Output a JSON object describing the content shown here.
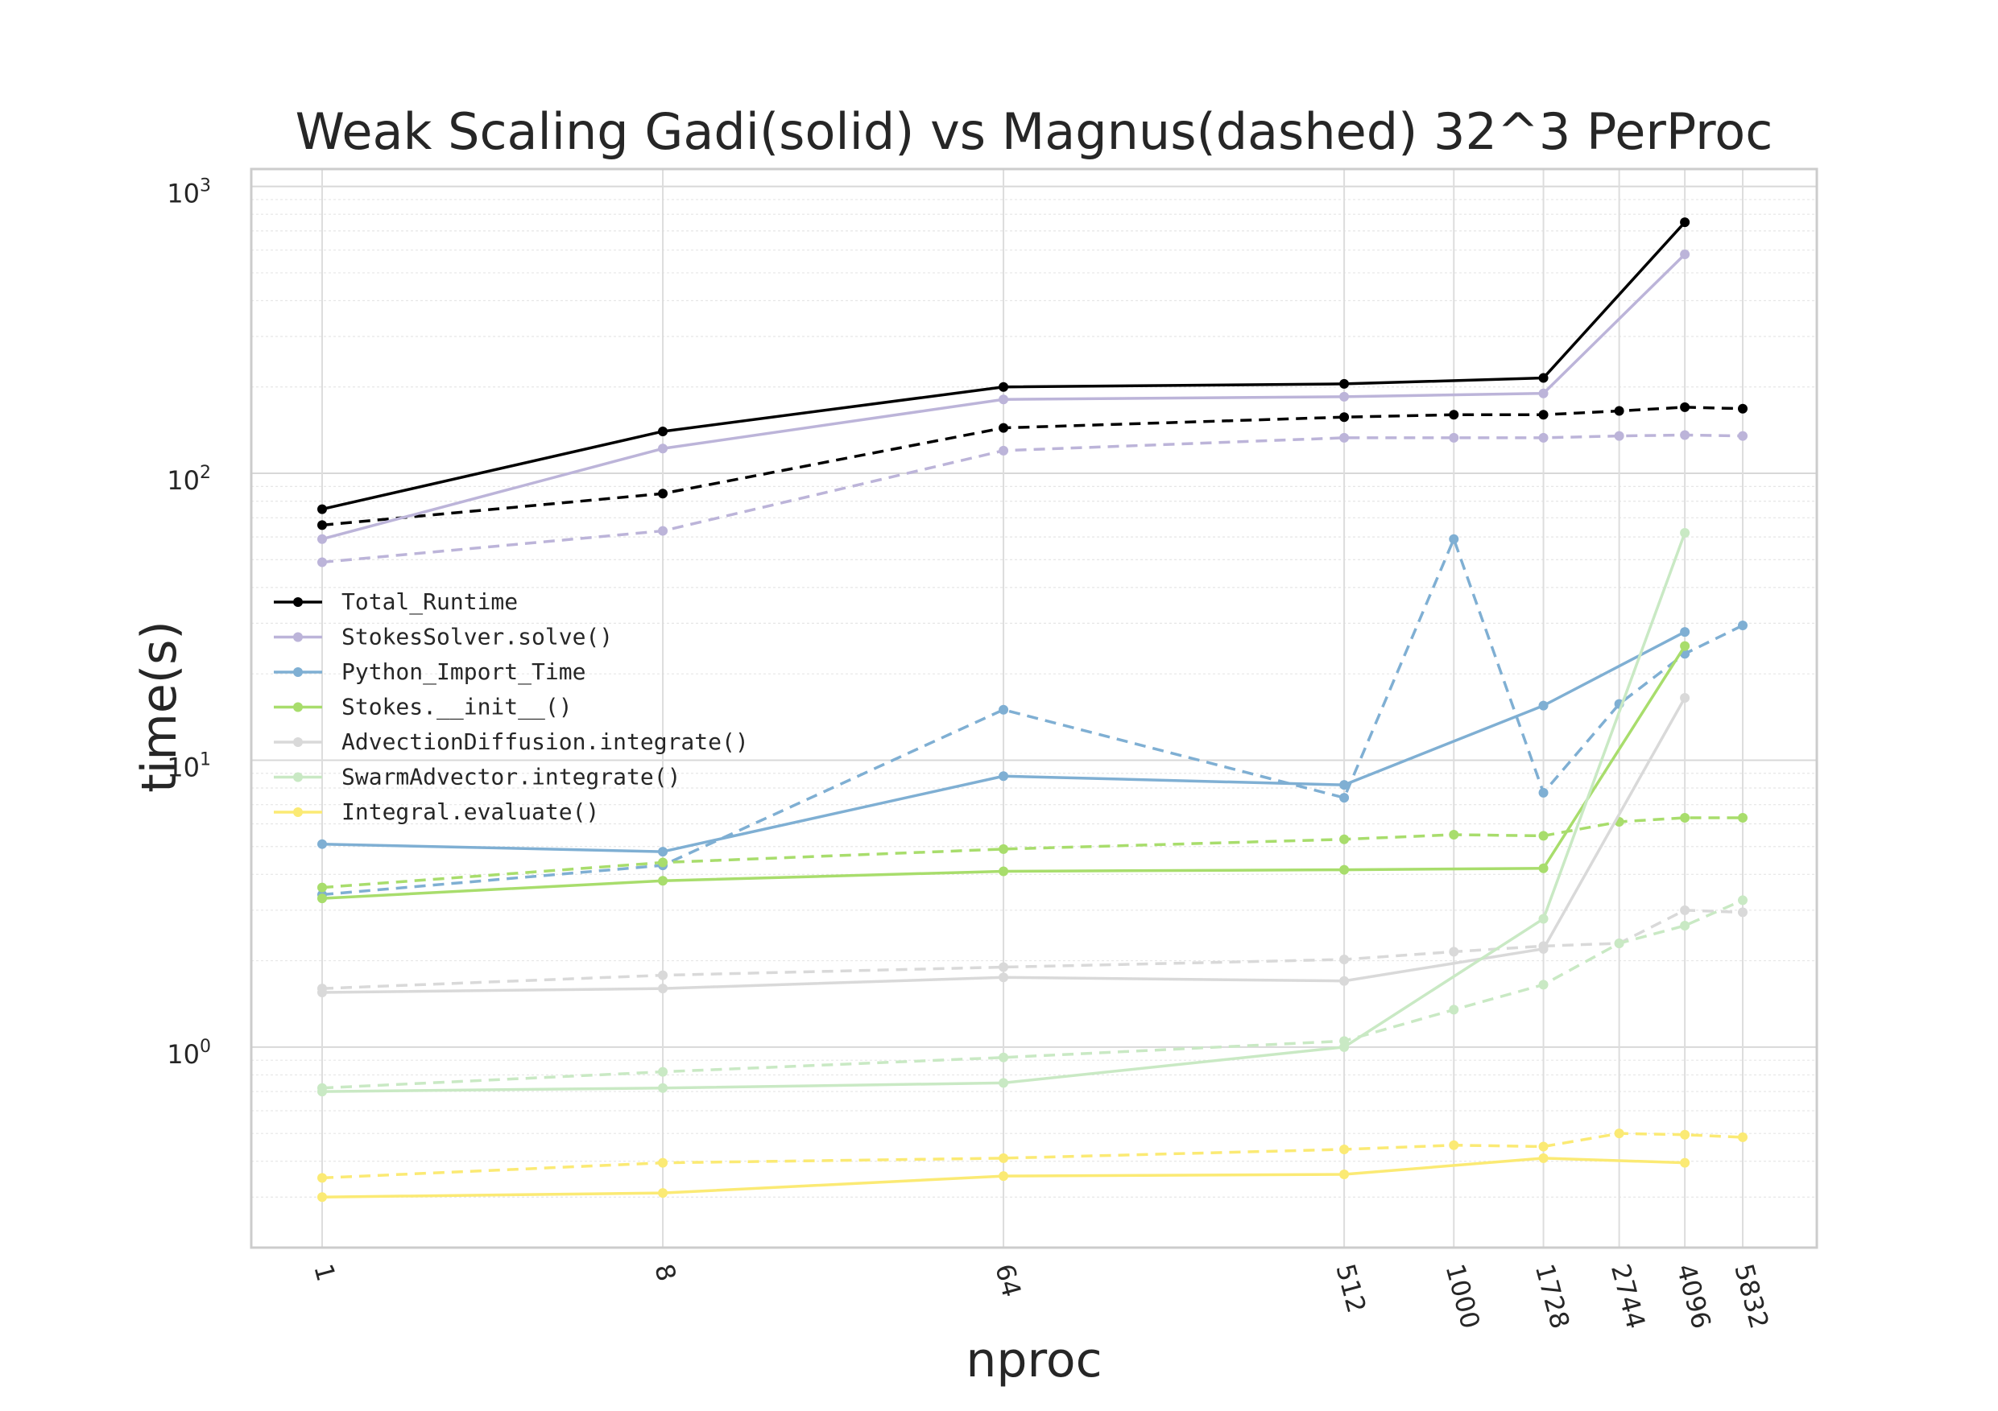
{
  "chart_data": {
    "type": "line",
    "title": "Weak Scaling Gadi(solid) vs Magnus(dashed) 32^3 PerProc",
    "xlabel": "nproc",
    "ylabel": "time(s)",
    "xscale": "log",
    "yscale": "log",
    "ylim": [
      0.2,
      1150
    ],
    "yticks": [
      {
        "value": 1,
        "base": "10",
        "exp": "0"
      },
      {
        "value": 10,
        "base": "10",
        "exp": "1"
      },
      {
        "value": 100,
        "base": "10",
        "exp": "2"
      },
      {
        "value": 1000,
        "base": "10",
        "exp": "3"
      }
    ],
    "xticks": [
      "1",
      "8",
      "64",
      "512",
      "1000",
      "1728",
      "2744",
      "4096",
      "5832"
    ],
    "grid": true,
    "legend_position": "center-left",
    "series": [
      {
        "name": "Total_Runtime",
        "color": "#000000",
        "style": "solid",
        "x": [
          1,
          8,
          64,
          512,
          1728,
          4096
        ],
        "y": [
          75,
          140,
          200,
          205,
          215,
          750
        ]
      },
      {
        "name": "StokesSolver.solve()",
        "color": "#bcb4d9",
        "style": "solid",
        "x": [
          1,
          8,
          64,
          512,
          1728,
          4096
        ],
        "y": [
          59,
          122,
          181,
          185,
          190,
          580
        ]
      },
      {
        "name": "Python_Import_Time",
        "color": "#7fafd3",
        "style": "solid",
        "x": [
          1,
          8,
          64,
          512,
          1728,
          4096
        ],
        "y": [
          5.1,
          4.8,
          8.8,
          8.2,
          15.5,
          28
        ]
      },
      {
        "name": "Stokes.__init__()",
        "color": "#a8dd6c",
        "style": "solid",
        "x": [
          1,
          8,
          64,
          512,
          1728,
          4096
        ],
        "y": [
          3.3,
          3.8,
          4.1,
          4.15,
          4.2,
          25
        ]
      },
      {
        "name": "AdvectionDiffusion.integrate()",
        "color": "#d9d9d9",
        "style": "solid",
        "x": [
          1,
          8,
          64,
          512,
          1728,
          4096
        ],
        "y": [
          1.55,
          1.6,
          1.75,
          1.7,
          2.2,
          16.5
        ]
      },
      {
        "name": "SwarmAdvector.integrate()",
        "color": "#c9e9c4",
        "style": "solid",
        "x": [
          1,
          8,
          64,
          512,
          1728,
          4096
        ],
        "y": [
          0.7,
          0.72,
          0.75,
          1.0,
          2.8,
          62
        ]
      },
      {
        "name": "Integral.evaluate()",
        "color": "#fbea74",
        "style": "solid",
        "x": [
          1,
          8,
          64,
          512,
          1728,
          4096
        ],
        "y": [
          0.3,
          0.31,
          0.355,
          0.36,
          0.41,
          0.395
        ]
      },
      {
        "color": "#000000",
        "style": "dashed",
        "x": [
          1,
          8,
          64,
          512,
          1000,
          1728,
          2744,
          4096,
          5832
        ],
        "y": [
          66,
          85,
          144,
          157,
          160,
          160,
          165,
          170,
          168
        ]
      },
      {
        "color": "#bcb4d9",
        "style": "dashed",
        "x": [
          1,
          8,
          64,
          512,
          1000,
          1728,
          2744,
          4096,
          5832
        ],
        "y": [
          49,
          63,
          120,
          133,
          133,
          133,
          135,
          136,
          135
        ]
      },
      {
        "color": "#7fafd3",
        "style": "dashed",
        "x": [
          1,
          8,
          64,
          512,
          1000,
          1728,
          2744,
          4096,
          5832
        ],
        "y": [
          3.4,
          4.3,
          15,
          7.4,
          59,
          7.7,
          15.7,
          23.5,
          29.5
        ]
      },
      {
        "color": "#a8dd6c",
        "style": "dashed",
        "x": [
          1,
          8,
          64,
          512,
          1000,
          1728,
          2744,
          4096,
          5832
        ],
        "y": [
          3.6,
          4.4,
          4.9,
          5.3,
          5.5,
          5.45,
          6.1,
          6.3,
          6.3
        ]
      },
      {
        "color": "#d9d9d9",
        "style": "dashed",
        "x": [
          1,
          8,
          64,
          512,
          1000,
          1728,
          2744,
          4096,
          5832
        ],
        "y": [
          1.6,
          1.78,
          1.9,
          2.02,
          2.15,
          2.25,
          2.3,
          3.0,
          2.95
        ]
      },
      {
        "color": "#c9e9c4",
        "style": "dashed",
        "x": [
          1,
          8,
          64,
          512,
          1000,
          1728,
          2744,
          4096,
          5832
        ],
        "y": [
          0.72,
          0.82,
          0.92,
          1.05,
          1.35,
          1.65,
          2.3,
          2.65,
          3.25
        ]
      },
      {
        "color": "#fbea74",
        "style": "dashed",
        "x": [
          1,
          8,
          64,
          512,
          1000,
          1728,
          2744,
          4096,
          5832
        ],
        "y": [
          0.35,
          0.395,
          0.41,
          0.44,
          0.455,
          0.45,
          0.5,
          0.495,
          0.485
        ]
      }
    ]
  }
}
